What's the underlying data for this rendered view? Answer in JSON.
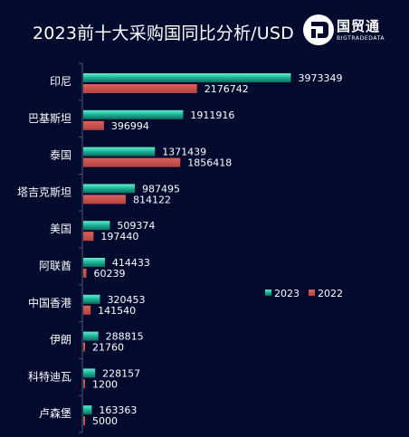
{
  "chart_data": {
    "type": "bar",
    "orientation": "horizontal",
    "title": "2023前十大采购国同比分析/USD",
    "categories": [
      "印尼",
      "巴基斯坦",
      "泰国",
      "塔吉克斯坦",
      "美国",
      "阿联酋",
      "中国香港",
      "伊朗",
      "科特迪瓦",
      "卢森堡"
    ],
    "series": [
      {
        "name": "2023",
        "color": "#1fb79a",
        "values": [
          3973349,
          1911916,
          1371439,
          987495,
          509374,
          414433,
          320453,
          288815,
          228157,
          163363
        ]
      },
      {
        "name": "2022",
        "color": "#c9504c",
        "values": [
          2176742,
          396994,
          1856418,
          814122,
          197440,
          60239,
          141540,
          21760,
          1200,
          5000
        ]
      }
    ],
    "xlim": [
      0,
      4000000
    ],
    "grid": false,
    "legend": "right"
  },
  "logo": {
    "name": "国贸通",
    "sub": "BIGTRADEDATA"
  }
}
